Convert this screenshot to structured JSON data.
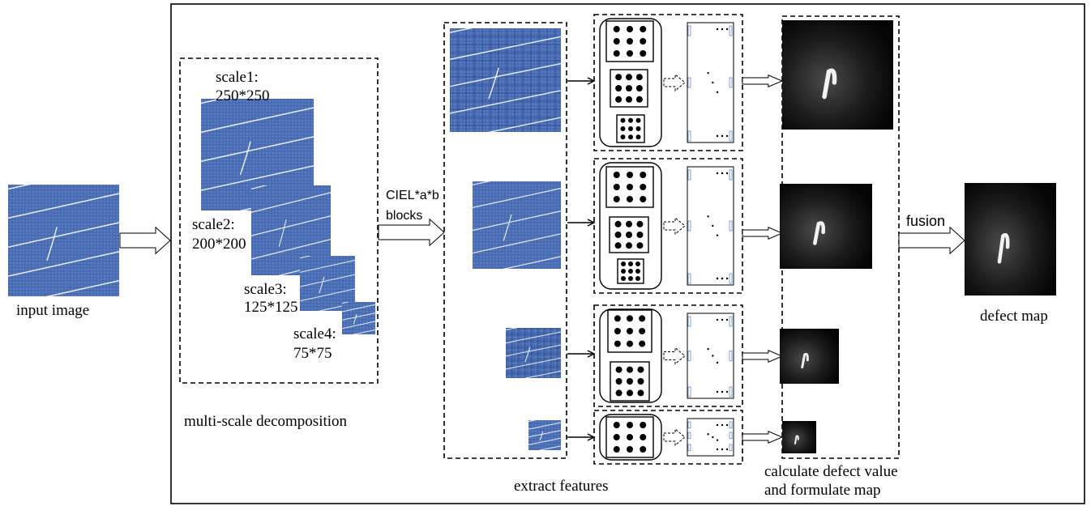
{
  "input": {
    "label": "input image"
  },
  "scales": [
    {
      "name": "scale1:",
      "size": "250*250"
    },
    {
      "name": "scale2:",
      "size": "200*200"
    },
    {
      "name": "scale3:",
      "size": "125*125"
    },
    {
      "name": "scale4:",
      "size": "75*75"
    }
  ],
  "decomposition": {
    "label": "multi-scale decomposition"
  },
  "color_space": {
    "line1": "CIEL*a*b",
    "line2": "blocks"
  },
  "extract": {
    "label": "extract features"
  },
  "calculate": {
    "line1": "calculate defect value",
    "line2": "and formulate map"
  },
  "fusion": {
    "label": "fusion"
  },
  "output": {
    "label": "defect map"
  }
}
